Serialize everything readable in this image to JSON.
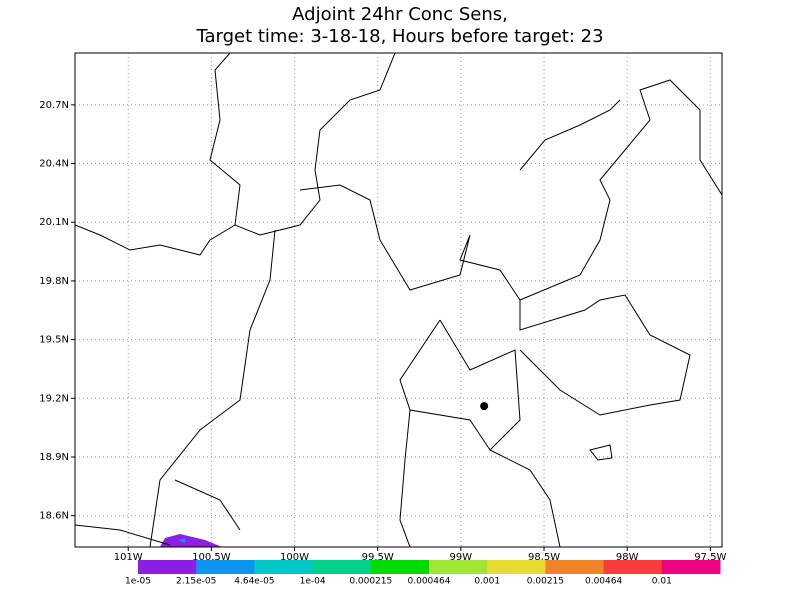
{
  "chart_data": {
    "type": "map",
    "title": [
      "Adjoint 24hr Conc Sens,",
      "Target time: 3-18-18, Hours before target: 23"
    ],
    "xlim": [
      -101.32,
      -97.43
    ],
    "ylim": [
      18.44,
      20.965
    ],
    "xticks": [
      {
        "value": -101,
        "label": "101W"
      },
      {
        "value": -100.5,
        "label": "100.5W"
      },
      {
        "value": -100,
        "label": "100W"
      },
      {
        "value": -99.5,
        "label": "99.5W"
      },
      {
        "value": -99,
        "label": "99W"
      },
      {
        "value": -98.5,
        "label": "98.5W"
      },
      {
        "value": -98,
        "label": "98W"
      },
      {
        "value": -97.5,
        "label": "97.5W"
      }
    ],
    "yticks": [
      {
        "value": 18.6,
        "label": "18.6N"
      },
      {
        "value": 18.9,
        "label": "18.9N"
      },
      {
        "value": 19.2,
        "label": "19.2N"
      },
      {
        "value": 19.5,
        "label": "19.5N"
      },
      {
        "value": 19.8,
        "label": "19.8N"
      },
      {
        "value": 20.1,
        "label": "20.1N"
      },
      {
        "value": 20.4,
        "label": "20.4N"
      },
      {
        "value": 20.7,
        "label": "20.7N"
      }
    ],
    "grid": true,
    "marker": {
      "lon": -98.86,
      "lat": 19.16
    },
    "colorbar": {
      "colors": [
        "#8c1ee6",
        "#0a96f0",
        "#00c8c8",
        "#00d28c",
        "#00dc00",
        "#a0e632",
        "#e6dc32",
        "#f08228",
        "#fa3c3c",
        "#f00082"
      ],
      "labels": [
        "1e-05",
        "2.15e-05",
        "4.64e-05",
        "1e-04",
        "0.000215",
        "0.000464",
        "0.001",
        "0.00215",
        "0.00464",
        "0.01"
      ]
    }
  }
}
